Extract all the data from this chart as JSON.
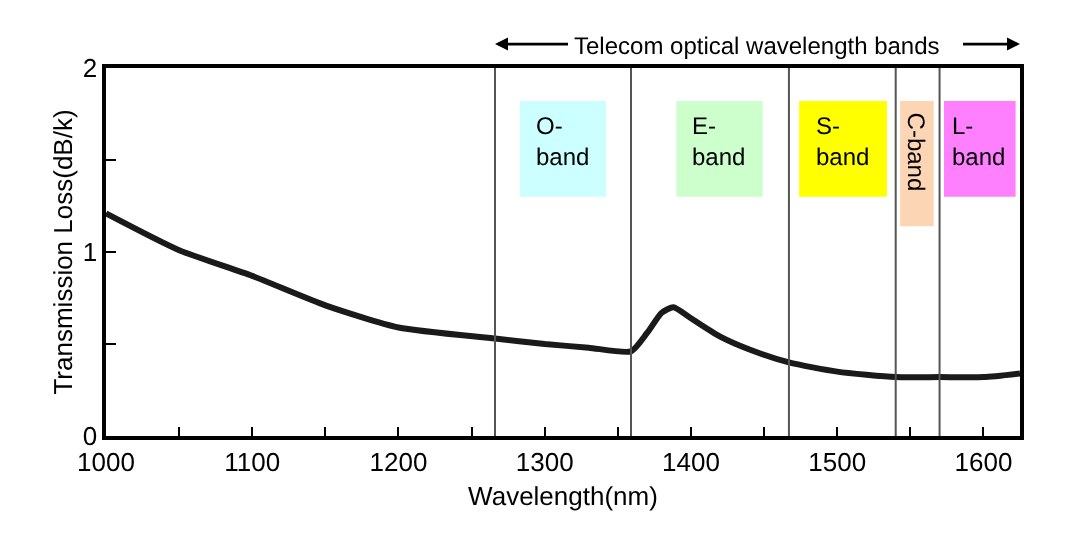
{
  "chart_data": {
    "type": "line",
    "xlabel": "Wavelength(nm)",
    "ylabel": "Transmission Loss(dB/k)",
    "x": [
      1000,
      1050,
      1100,
      1150,
      1200,
      1266,
      1300,
      1330,
      1359,
      1370,
      1380,
      1388,
      1400,
      1420,
      1440,
      1467,
      1500,
      1540,
      1570,
      1600,
      1625
    ],
    "series": [
      {
        "color": "#1a1a1a",
        "values": [
          1.21,
          1.01,
          0.87,
          0.71,
          0.59,
          0.53,
          0.5,
          0.48,
          0.46,
          0.56,
          0.67,
          0.7,
          0.64,
          0.54,
          0.47,
          0.4,
          0.35,
          0.32,
          0.32,
          0.32,
          0.34
        ]
      }
    ],
    "xlim": [
      1000,
      1625
    ],
    "ylim": [
      0,
      2
    ],
    "xticks": [
      1000,
      {
        "value": 1050,
        "label": null
      },
      1100,
      {
        "value": 1150,
        "label": null
      },
      1200,
      {
        "value": 1250,
        "label": null
      },
      1300,
      {
        "value": 1350,
        "label": null
      },
      1400,
      {
        "value": 1450,
        "label": null
      },
      1500,
      {
        "value": 1550,
        "label": null
      },
      1600
    ],
    "yticks": [
      0,
      {
        "value": 0.5,
        "label": null
      },
      1,
      {
        "value": 1.5,
        "label": null
      },
      2
    ],
    "ref_lines": [
      {
        "axis": "x",
        "value": 1266,
        "color": "#555555"
      },
      {
        "axis": "x",
        "value": 1359,
        "color": "#555555"
      },
      {
        "axis": "x",
        "value": 1467,
        "color": "#555555"
      },
      {
        "axis": "x",
        "value": 1540,
        "color": "#555555"
      },
      {
        "axis": "x",
        "value": 1570,
        "color": "#555555"
      }
    ],
    "bands": [
      {
        "axis": "x",
        "from": 1283,
        "to": 1342,
        "label": "O-\nband",
        "color": "#ccffff"
      },
      {
        "axis": "x",
        "from": 1390,
        "to": 1449,
        "label": "E-\nband",
        "color": "#ccffcc"
      },
      {
        "axis": "x",
        "from": 1474,
        "to": 1534,
        "label": "S-\nband",
        "color": "#ffff00"
      },
      {
        "axis": "x",
        "from": 1543,
        "to": 1566,
        "label": "C-band",
        "color": "#fcd5b5"
      },
      {
        "axis": "x",
        "from": 1573,
        "to": 1622,
        "label": "L-\nband",
        "color": "#ff80ff"
      }
    ],
    "annotations": [
      "Telecom optical wavelength bands"
    ],
    "grid": false,
    "marker": "none",
    "line_style": "solid"
  }
}
